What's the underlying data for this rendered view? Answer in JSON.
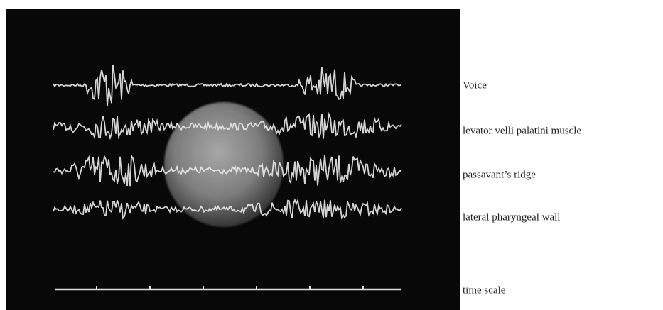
{
  "figure": {
    "labels": [
      "Voice",
      "levator velli palatini muscle",
      "passavant’s ridge",
      "lateral pharyngeal wall",
      "time scale"
    ]
  }
}
